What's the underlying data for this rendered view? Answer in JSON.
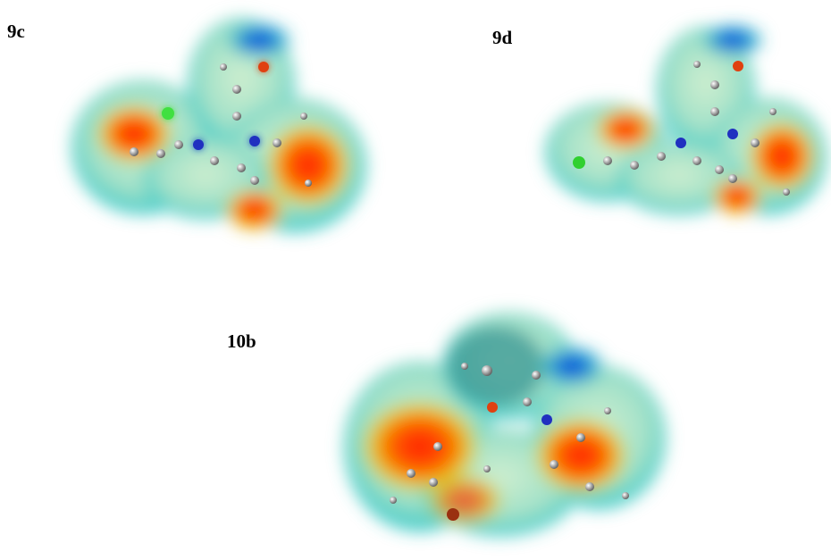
{
  "panels": [
    {
      "label": "9c"
    },
    {
      "label": "9d"
    },
    {
      "label": "10b"
    }
  ]
}
